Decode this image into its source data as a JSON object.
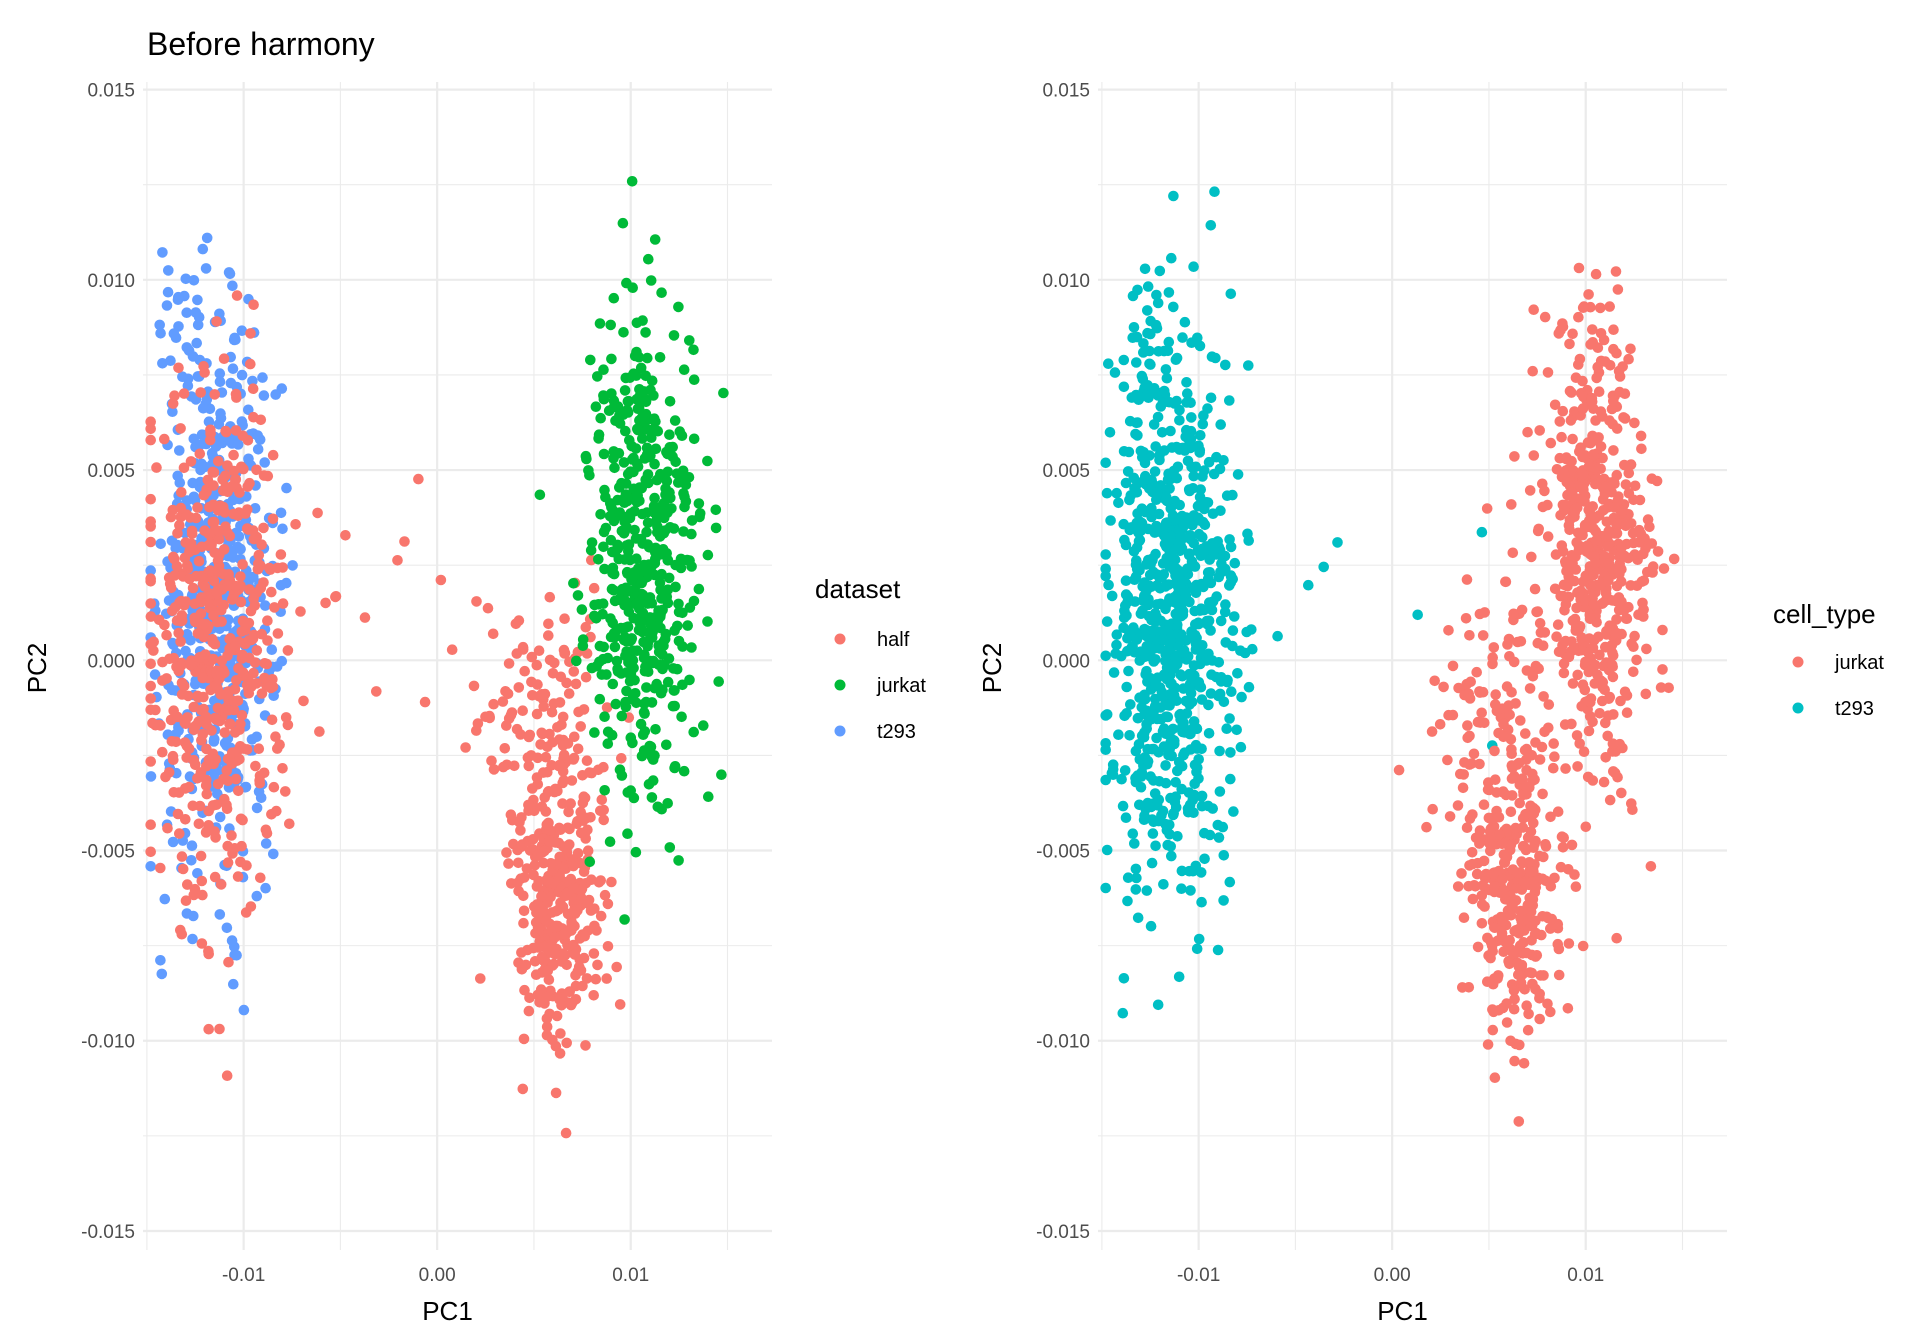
{
  "chart_data": [
    {
      "type": "scatter",
      "title": "Before harmony",
      "xlabel": "PC1",
      "ylabel": "PC2",
      "xlim": [
        -0.0152,
        0.0173
      ],
      "ylim": [
        -0.0155,
        0.0152
      ],
      "x_ticks": [
        -0.01,
        0.0,
        0.01
      ],
      "x_tick_labels": [
        "-0.01",
        "0.00",
        "0.01"
      ],
      "y_ticks": [
        -0.015,
        -0.01,
        -0.005,
        0.0,
        0.005,
        0.01,
        0.015
      ],
      "y_tick_labels": [
        "-0.015",
        "-0.010",
        "-0.005",
        "0.000",
        "0.005",
        "0.010",
        "0.015"
      ],
      "grid": true,
      "legend": {
        "title": "dataset",
        "position": "right",
        "entries": [
          {
            "label": "half",
            "color": "#F8766D"
          },
          {
            "label": "jurkat",
            "color": "#00BA38"
          },
          {
            "label": "t293",
            "color": "#619CFF"
          }
        ]
      },
      "series": [
        {
          "name": "t293",
          "color": "#619CFF",
          "clusters": [
            {
              "cx": -0.0113,
              "cy": 0.0015,
              "sx": 0.0015,
              "sy": 0.0034,
              "n": 560
            },
            {
              "cx": -0.0128,
              "cy": 0.0085,
              "sx": 0.001,
              "sy": 0.0013,
              "n": 30
            }
          ]
        },
        {
          "name": "half",
          "color": "#F8766D",
          "clusters": [
            {
              "cx": -0.0113,
              "cy": 0.0005,
              "sx": 0.0017,
              "sy": 0.0034,
              "n": 520
            },
            {
              "cx": 0.0063,
              "cy": -0.006,
              "sx": 0.0013,
              "sy": 0.002,
              "n": 340
            },
            {
              "cx": 0.0055,
              "cy": -0.0012,
              "sx": 0.0018,
              "sy": 0.0016,
              "n": 110
            },
            {
              "cx": -0.0025,
              "cy": 0.001,
              "sx": 0.003,
              "sy": 0.002,
              "n": 14
            }
          ]
        },
        {
          "name": "jurkat",
          "color": "#00BA38",
          "clusters": [
            {
              "cx": 0.0105,
              "cy": 0.0028,
              "sx": 0.0014,
              "sy": 0.003,
              "n": 520
            }
          ]
        }
      ]
    },
    {
      "type": "scatter",
      "title": "",
      "xlabel": "PC1",
      "ylabel": "PC2",
      "xlim": [
        -0.0152,
        0.0173
      ],
      "ylim": [
        -0.0155,
        0.0152
      ],
      "x_ticks": [
        -0.01,
        0.0,
        0.01
      ],
      "x_tick_labels": [
        "-0.01",
        "0.00",
        "0.01"
      ],
      "y_ticks": [
        -0.015,
        -0.01,
        -0.005,
        0.0,
        0.005,
        0.01,
        0.015
      ],
      "y_tick_labels": [
        "-0.015",
        "-0.010",
        "-0.005",
        "0.000",
        "0.005",
        "0.010",
        "0.015"
      ],
      "grid": true,
      "legend": {
        "title": "cell_type",
        "position": "right",
        "entries": [
          {
            "label": "jurkat",
            "color": "#F8766D"
          },
          {
            "label": "t293",
            "color": "#00BFC4"
          }
        ]
      },
      "series": [
        {
          "name": "t293",
          "color": "#00BFC4",
          "clusters": [
            {
              "cx": -0.0113,
              "cy": 0.001,
              "sx": 0.0016,
              "sy": 0.0035,
              "n": 780
            },
            {
              "cx": -0.0128,
              "cy": 0.0085,
              "sx": 0.001,
              "sy": 0.0013,
              "n": 30
            },
            {
              "cx": -0.0025,
              "cy": 0.001,
              "sx": 0.003,
              "sy": 0.002,
              "n": 8
            }
          ]
        },
        {
          "name": "jurkat",
          "color": "#F8766D",
          "clusters": [
            {
              "cx": 0.0105,
              "cy": 0.0028,
              "sx": 0.0014,
              "sy": 0.003,
              "n": 560
            },
            {
              "cx": 0.0063,
              "cy": -0.006,
              "sx": 0.0013,
              "sy": 0.002,
              "n": 320
            },
            {
              "cx": 0.0055,
              "cy": -0.0012,
              "sx": 0.0018,
              "sy": 0.0016,
              "n": 100
            }
          ]
        }
      ]
    }
  ]
}
